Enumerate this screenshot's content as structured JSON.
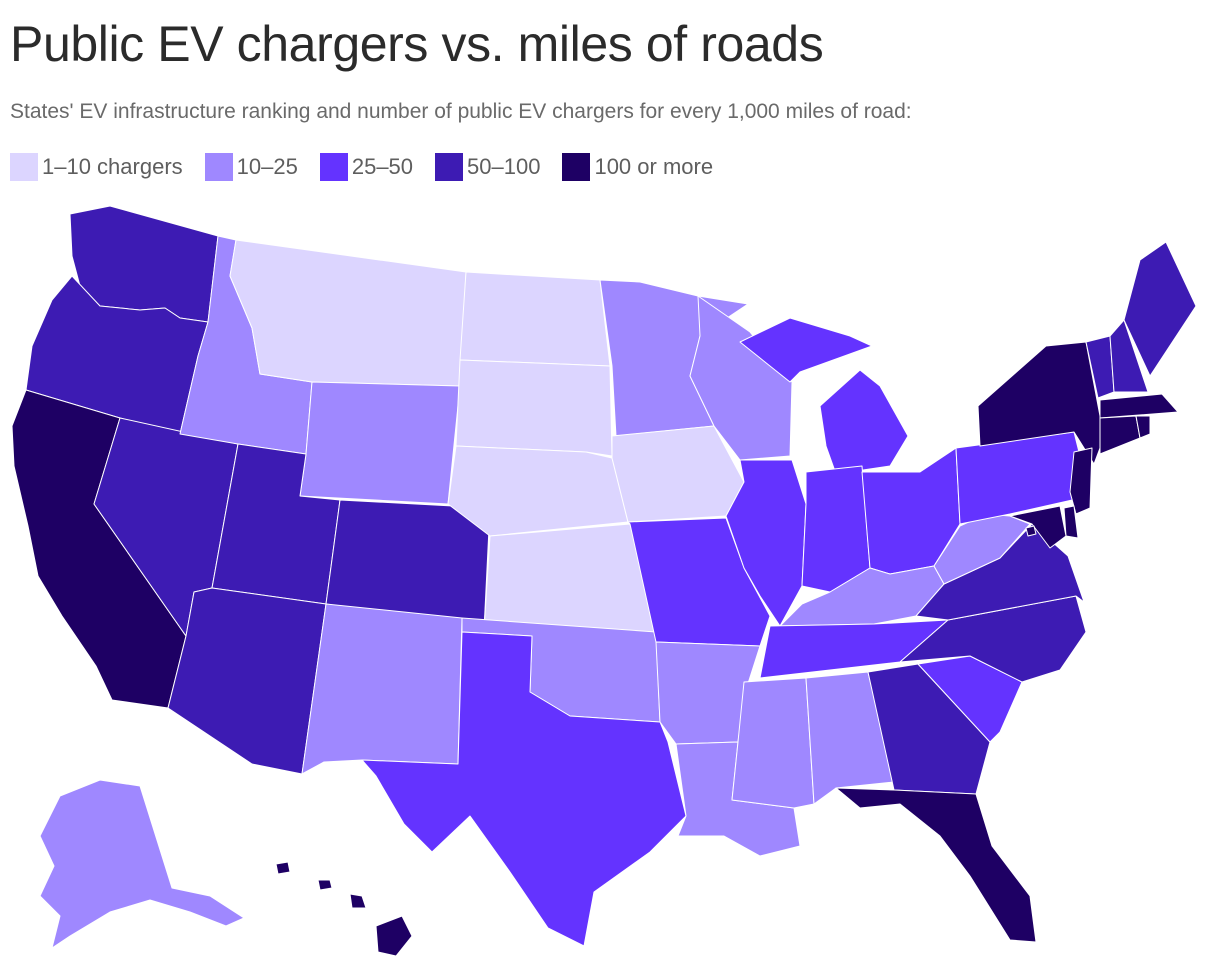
{
  "title": "Public EV chargers vs. miles of roads",
  "subtitle": "States' EV infrastructure ranking and number of public EV chargers for every 1,000 miles of road:",
  "legend": [
    {
      "label": "1–10 chargers",
      "color": "#dcd5ff"
    },
    {
      "label": "10–25",
      "color": "#9f88ff"
    },
    {
      "label": "25–50",
      "color": "#6433ff"
    },
    {
      "label": "50–100",
      "color": "#3d1bb3"
    },
    {
      "label": "100 or more",
      "color": "#1e0064"
    }
  ],
  "map_data": {
    "type": "choropleth",
    "region": "United States",
    "states": [
      {
        "state": "WA",
        "bin": 3
      },
      {
        "state": "OR",
        "bin": 3
      },
      {
        "state": "CA",
        "bin": 4
      },
      {
        "state": "NV",
        "bin": 3
      },
      {
        "state": "ID",
        "bin": 1
      },
      {
        "state": "MT",
        "bin": 0
      },
      {
        "state": "WY",
        "bin": 1
      },
      {
        "state": "UT",
        "bin": 3
      },
      {
        "state": "AZ",
        "bin": 3
      },
      {
        "state": "CO",
        "bin": 3
      },
      {
        "state": "NM",
        "bin": 1
      },
      {
        "state": "ND",
        "bin": 0
      },
      {
        "state": "SD",
        "bin": 0
      },
      {
        "state": "NE",
        "bin": 0
      },
      {
        "state": "KS",
        "bin": 0
      },
      {
        "state": "OK",
        "bin": 1
      },
      {
        "state": "TX",
        "bin": 2
      },
      {
        "state": "MN",
        "bin": 1
      },
      {
        "state": "IA",
        "bin": 0
      },
      {
        "state": "MO",
        "bin": 2
      },
      {
        "state": "AR",
        "bin": 1
      },
      {
        "state": "LA",
        "bin": 1
      },
      {
        "state": "WI",
        "bin": 1
      },
      {
        "state": "IL",
        "bin": 2
      },
      {
        "state": "MI",
        "bin": 2
      },
      {
        "state": "IN",
        "bin": 2
      },
      {
        "state": "OH",
        "bin": 2
      },
      {
        "state": "KY",
        "bin": 1
      },
      {
        "state": "TN",
        "bin": 2
      },
      {
        "state": "MS",
        "bin": 1
      },
      {
        "state": "AL",
        "bin": 1
      },
      {
        "state": "GA",
        "bin": 3
      },
      {
        "state": "FL",
        "bin": 4
      },
      {
        "state": "SC",
        "bin": 2
      },
      {
        "state": "NC",
        "bin": 3
      },
      {
        "state": "VA",
        "bin": 3
      },
      {
        "state": "WV",
        "bin": 1
      },
      {
        "state": "PA",
        "bin": 2
      },
      {
        "state": "NY",
        "bin": 4
      },
      {
        "state": "VT",
        "bin": 3
      },
      {
        "state": "NH",
        "bin": 3
      },
      {
        "state": "ME",
        "bin": 3
      },
      {
        "state": "MA",
        "bin": 4
      },
      {
        "state": "CT",
        "bin": 4
      },
      {
        "state": "RI",
        "bin": 4
      },
      {
        "state": "NJ",
        "bin": 4
      },
      {
        "state": "DE",
        "bin": 4
      },
      {
        "state": "MD",
        "bin": 4
      },
      {
        "state": "DC",
        "bin": 4
      },
      {
        "state": "AK",
        "bin": 1
      },
      {
        "state": "HI",
        "bin": 4
      }
    ]
  }
}
